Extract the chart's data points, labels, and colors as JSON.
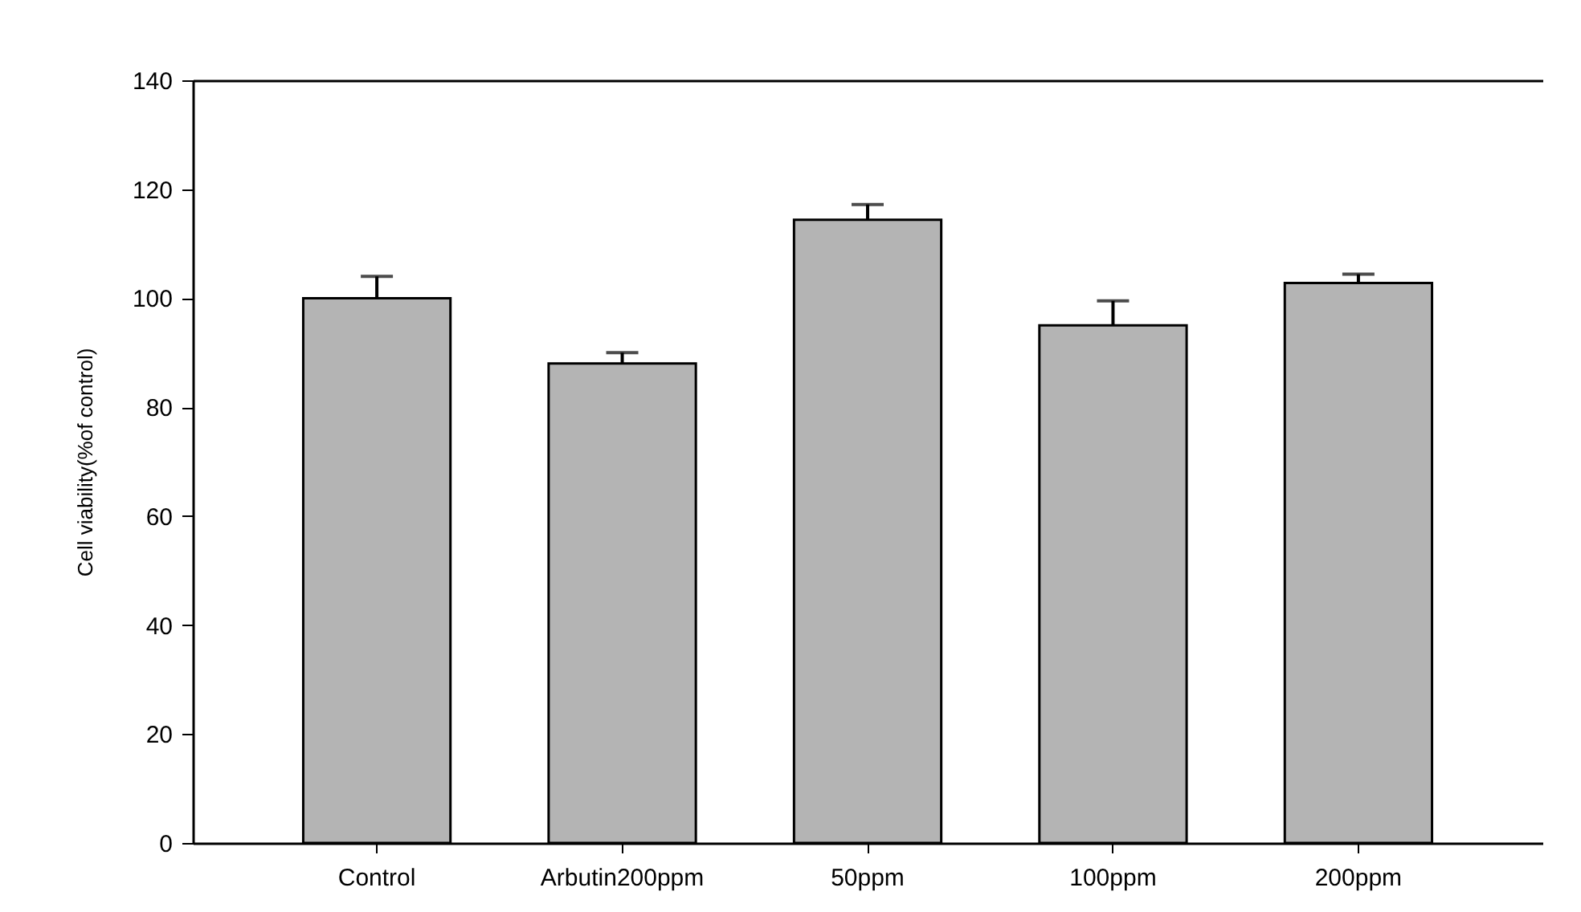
{
  "chart_data": {
    "type": "bar",
    "ylabel": "Cell viability(%of control)",
    "categories": [
      "Control",
      "Arbutin200ppm",
      "50ppm",
      "100ppm",
      "200ppm"
    ],
    "values": [
      100,
      88,
      114.4,
      95,
      102.8
    ],
    "errors": [
      [
        100,
        104
      ],
      [
        88,
        90
      ],
      [
        114.4,
        117.2
      ],
      [
        95,
        99.5
      ],
      [
        102.8,
        104.4
      ]
    ],
    "color": "#b4b4b4",
    "ylim": [
      0,
      140
    ],
    "yticks": [
      0,
      20,
      40,
      60,
      80,
      100,
      120,
      140
    ],
    "grid": false
  }
}
